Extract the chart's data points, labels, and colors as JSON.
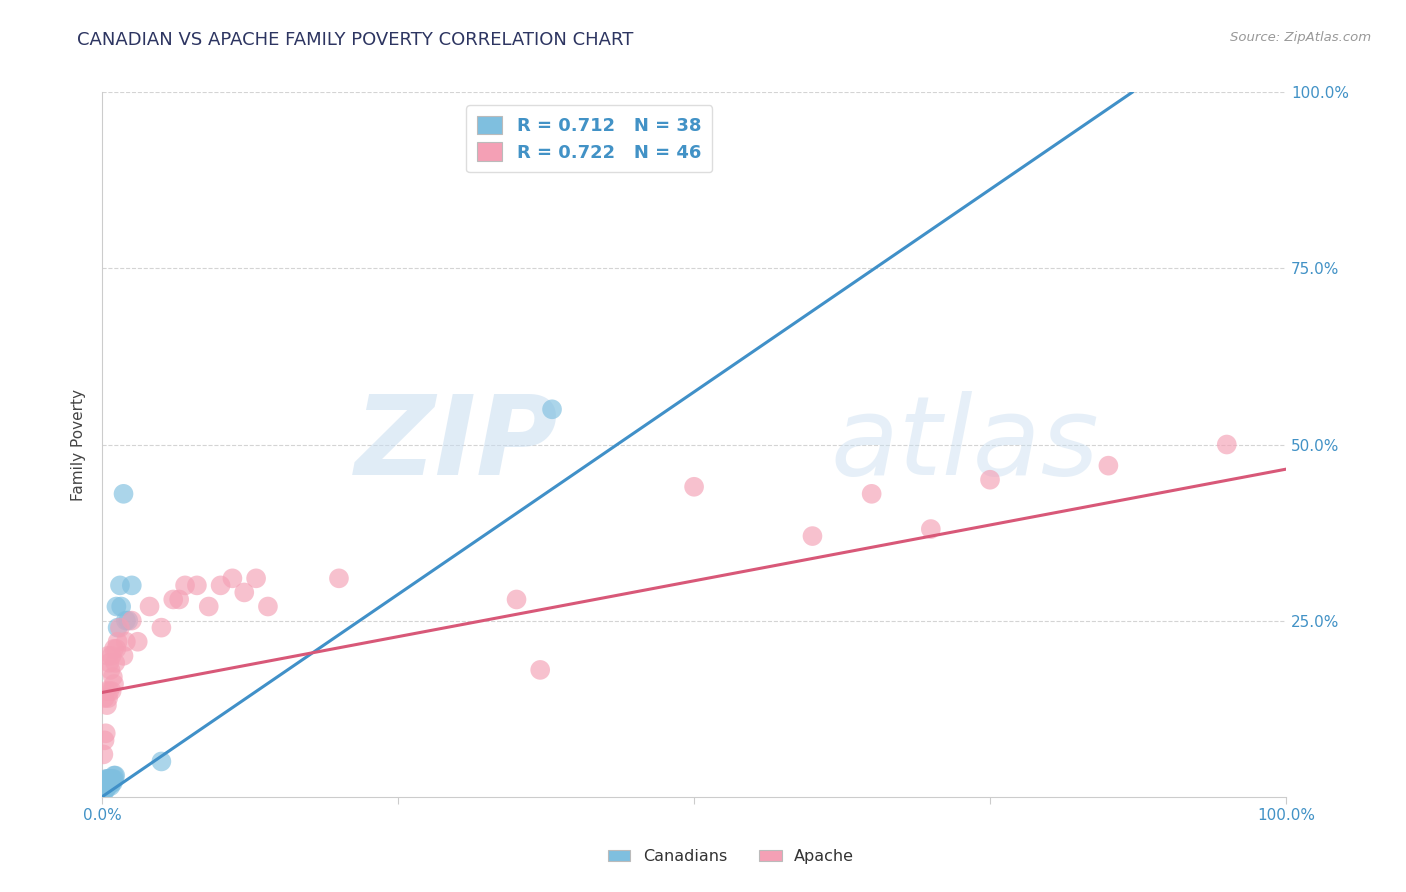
{
  "title": "CANADIAN VS APACHE FAMILY POVERTY CORRELATION CHART",
  "source": "Source: ZipAtlas.com",
  "ylabel": "Family Poverty",
  "title_color": "#2d3561",
  "title_fontsize": 13,
  "background_color": "#ffffff",
  "watermark_zip": "ZIP",
  "watermark_atlas": "atlas",
  "canadians_color": "#7fbfdf",
  "apache_color": "#f4a0b5",
  "canadians_line_color": "#4090c8",
  "apache_line_color": "#d85878",
  "canadians_R": 0.712,
  "canadians_N": 38,
  "apache_R": 0.722,
  "apache_N": 46,
  "canadians_x": [
    0.001,
    0.001,
    0.001,
    0.002,
    0.002,
    0.002,
    0.003,
    0.003,
    0.003,
    0.003,
    0.004,
    0.004,
    0.004,
    0.005,
    0.005,
    0.005,
    0.006,
    0.006,
    0.007,
    0.007,
    0.007,
    0.008,
    0.008,
    0.009,
    0.009,
    0.01,
    0.01,
    0.011,
    0.012,
    0.013,
    0.015,
    0.016,
    0.018,
    0.02,
    0.022,
    0.025,
    0.05,
    0.38
  ],
  "canadians_y": [
    0.005,
    0.01,
    0.015,
    0.01,
    0.015,
    0.02,
    0.01,
    0.015,
    0.02,
    0.025,
    0.015,
    0.02,
    0.025,
    0.015,
    0.02,
    0.025,
    0.02,
    0.025,
    0.015,
    0.02,
    0.025,
    0.02,
    0.025,
    0.02,
    0.025,
    0.025,
    0.03,
    0.03,
    0.27,
    0.24,
    0.3,
    0.27,
    0.43,
    0.25,
    0.25,
    0.3,
    0.05,
    0.55
  ],
  "apache_x": [
    0.001,
    0.002,
    0.002,
    0.003,
    0.003,
    0.004,
    0.005,
    0.005,
    0.006,
    0.006,
    0.007,
    0.008,
    0.008,
    0.009,
    0.01,
    0.01,
    0.011,
    0.012,
    0.013,
    0.015,
    0.018,
    0.02,
    0.025,
    0.03,
    0.04,
    0.05,
    0.06,
    0.065,
    0.07,
    0.08,
    0.09,
    0.1,
    0.11,
    0.12,
    0.13,
    0.14,
    0.2,
    0.35,
    0.37,
    0.5,
    0.6,
    0.65,
    0.7,
    0.75,
    0.85,
    0.95
  ],
  "apache_y": [
    0.06,
    0.08,
    0.14,
    0.09,
    0.15,
    0.13,
    0.14,
    0.2,
    0.15,
    0.19,
    0.18,
    0.15,
    0.2,
    0.17,
    0.16,
    0.21,
    0.19,
    0.21,
    0.22,
    0.24,
    0.2,
    0.22,
    0.25,
    0.22,
    0.27,
    0.24,
    0.28,
    0.28,
    0.3,
    0.3,
    0.27,
    0.3,
    0.31,
    0.29,
    0.31,
    0.27,
    0.31,
    0.28,
    0.18,
    0.44,
    0.37,
    0.43,
    0.38,
    0.45,
    0.47,
    0.5
  ],
  "canadians_line": [
    0.0,
    0.0,
    0.87,
    1.0
  ],
  "apache_line": [
    0.0,
    0.148,
    1.0,
    0.465
  ],
  "xlim": [
    0.0,
    1.0
  ],
  "ylim": [
    0.0,
    1.0
  ],
  "xtick_positions": [
    0.0,
    0.25,
    0.5,
    0.75,
    1.0
  ],
  "xtick_labels": [
    "0.0%",
    "",
    "",
    "",
    "100.0%"
  ],
  "ytick_positions": [
    0.25,
    0.5,
    0.75,
    1.0
  ],
  "ytick_labels": [
    "25.0%",
    "50.0%",
    "75.0%",
    "100.0%"
  ],
  "grid_color": "#b8b8b8",
  "grid_alpha": 0.6,
  "tick_color": "#4292c6",
  "legend_label_color": "#4292c6"
}
